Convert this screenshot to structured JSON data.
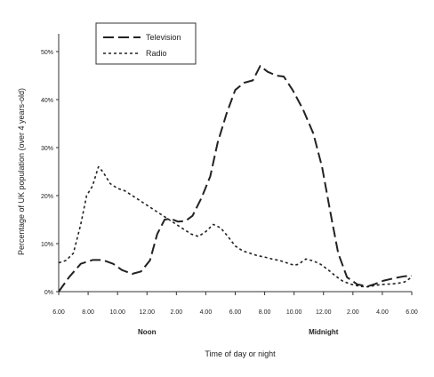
{
  "chart_data": {
    "type": "line",
    "xlabel": "Time of day or night",
    "ylabel": "Percentage of UK population (over 4 years-old)",
    "x_ticks": [
      "6.00",
      "8.00",
      "10.00",
      "12.00",
      "2.00",
      "4.00",
      "6.00",
      "8.00",
      "10.00",
      "12.00",
      "2.00",
      "4.00",
      "6.00"
    ],
    "x_range": [
      0,
      24
    ],
    "y_ticks": [
      "0%",
      "10%",
      "20%",
      "30%",
      "40%",
      "50%"
    ],
    "ylim": [
      0,
      50
    ],
    "annotations": [
      {
        "text": "Noon",
        "x": 6
      },
      {
        "text": "Midnight",
        "x": 18
      }
    ],
    "legend_position": "top-left",
    "series": [
      {
        "name": "Television",
        "style": "long-dash",
        "points": [
          [
            0,
            0
          ],
          [
            0.7,
            3
          ],
          [
            1.5,
            5.8
          ],
          [
            2.3,
            6.6
          ],
          [
            3,
            6.6
          ],
          [
            3.7,
            5.8
          ],
          [
            4.3,
            4.5
          ],
          [
            5,
            3.7
          ],
          [
            5.6,
            4.2
          ],
          [
            6.2,
            6.5
          ],
          [
            6.7,
            12
          ],
          [
            7.2,
            15
          ],
          [
            7.6,
            15.2
          ],
          [
            8.1,
            14.6
          ],
          [
            8.6,
            14.7
          ],
          [
            9.1,
            15.8
          ],
          [
            9.7,
            19.5
          ],
          [
            10.3,
            24
          ],
          [
            10.8,
            31
          ],
          [
            11.4,
            37
          ],
          [
            12,
            42
          ],
          [
            12.6,
            43.5
          ],
          [
            13.2,
            44
          ],
          [
            13.7,
            47
          ],
          [
            14.2,
            45.8
          ],
          [
            14.8,
            45
          ],
          [
            15.3,
            44.8
          ],
          [
            15.9,
            42
          ],
          [
            16.6,
            38
          ],
          [
            17.3,
            33
          ],
          [
            17.9,
            26
          ],
          [
            18.5,
            16
          ],
          [
            19,
            8
          ],
          [
            19.6,
            3
          ],
          [
            20.3,
            1.5
          ],
          [
            21,
            1.1
          ],
          [
            21.5,
            1.6
          ],
          [
            22.1,
            2.3
          ],
          [
            22.8,
            2.8
          ],
          [
            23.5,
            3.2
          ],
          [
            24,
            3.3
          ]
        ]
      },
      {
        "name": "Radio",
        "style": "short-dash",
        "points": [
          [
            0,
            6
          ],
          [
            0.5,
            6.5
          ],
          [
            1,
            8
          ],
          [
            1.5,
            14
          ],
          [
            1.9,
            20
          ],
          [
            2.3,
            22
          ],
          [
            2.7,
            26
          ],
          [
            3,
            25
          ],
          [
            3.5,
            22.5
          ],
          [
            4,
            21.5
          ],
          [
            4.5,
            21
          ],
          [
            5,
            20
          ],
          [
            5.5,
            19
          ],
          [
            6,
            18
          ],
          [
            6.5,
            17
          ],
          [
            7,
            16
          ],
          [
            7.5,
            15
          ],
          [
            8,
            14
          ],
          [
            8.5,
            13
          ],
          [
            9,
            12
          ],
          [
            9.5,
            11.5
          ],
          [
            10,
            12.5
          ],
          [
            10.5,
            14
          ],
          [
            11,
            13.3
          ],
          [
            11.5,
            11.5
          ],
          [
            12,
            9.5
          ],
          [
            12.5,
            8.5
          ],
          [
            13,
            8
          ],
          [
            13.5,
            7.5
          ],
          [
            14,
            7.2
          ],
          [
            14.5,
            6.8
          ],
          [
            15,
            6.5
          ],
          [
            15.5,
            6
          ],
          [
            16,
            5.5
          ],
          [
            16.3,
            5.7
          ],
          [
            16.8,
            6.8
          ],
          [
            17.3,
            6.4
          ],
          [
            17.8,
            5.7
          ],
          [
            18.3,
            4.6
          ],
          [
            18.8,
            3.3
          ],
          [
            19.3,
            2.2
          ],
          [
            19.8,
            1.6
          ],
          [
            20.5,
            1.1
          ],
          [
            21,
            1
          ],
          [
            21.5,
            1.3
          ],
          [
            22,
            1.5
          ],
          [
            22.5,
            1.6
          ],
          [
            23,
            1.7
          ],
          [
            23.5,
            2
          ],
          [
            24,
            3
          ]
        ]
      }
    ]
  }
}
